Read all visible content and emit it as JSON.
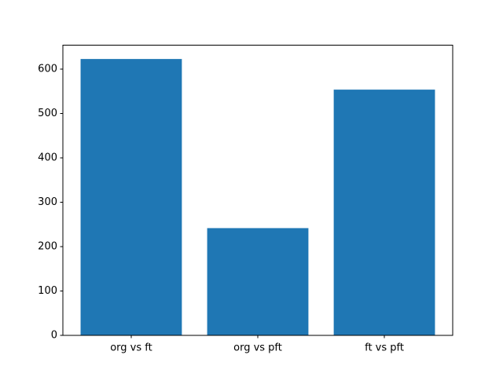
{
  "chart_data": {
    "type": "bar",
    "categories": [
      "org vs ft",
      "org vs pft",
      "ft vs pft"
    ],
    "values": [
      623,
      242,
      554
    ],
    "title": "",
    "xlabel": "",
    "ylabel": "",
    "ylim": [
      0,
      654
    ],
    "yticks": [
      0,
      100,
      200,
      300,
      400,
      500,
      600
    ],
    "bar_width_fraction": 0.8,
    "grid": false,
    "legend": "none"
  },
  "colors": {
    "bar": "#1f77b4",
    "spine": "#000000",
    "tick_text": "#000000",
    "background": "#ffffff"
  }
}
